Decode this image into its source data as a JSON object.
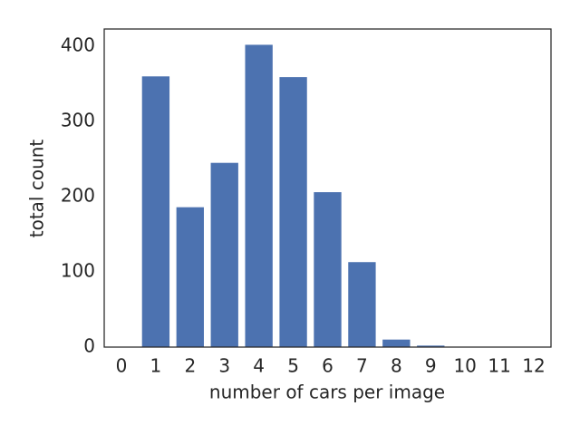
{
  "chart_data": {
    "type": "bar",
    "xlabel": "number of cars per image",
    "ylabel": "total count",
    "categories": [
      "0",
      "1",
      "2",
      "3",
      "4",
      "5",
      "6",
      "7",
      "8",
      "9",
      "10",
      "11",
      "12"
    ],
    "values": [
      0,
      360,
      186,
      245,
      402,
      359,
      206,
      113,
      10,
      2,
      0,
      0,
      0
    ],
    "color": "#4c72b0",
    "ylim": [
      0,
      423
    ],
    "yticks": [
      0,
      100,
      200,
      300,
      400
    ],
    "grid": false
  }
}
